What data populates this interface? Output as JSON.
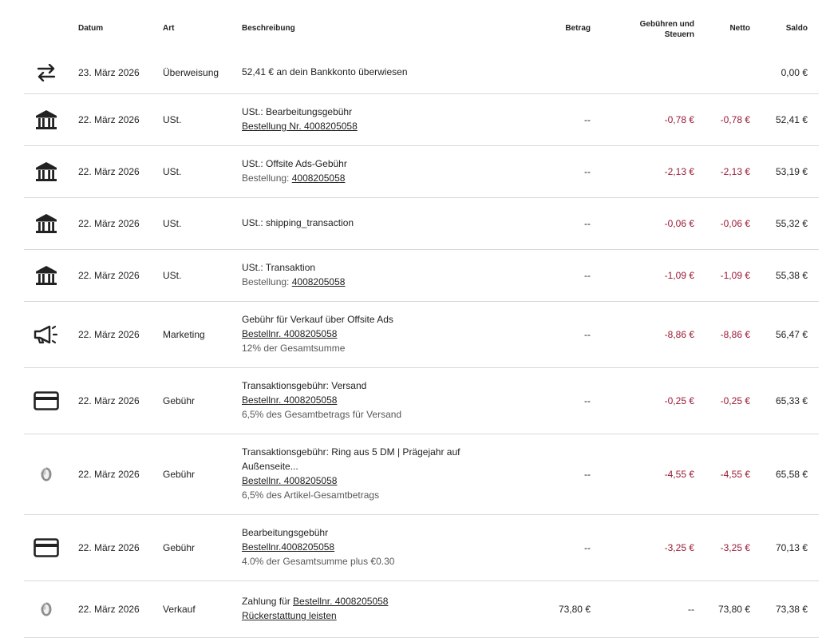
{
  "headers": {
    "datum": "Datum",
    "art": "Art",
    "beschreibung": "Beschreibung",
    "betrag": "Betrag",
    "gebuehren_l1": "Gebühren und",
    "gebuehren_l2": "Steuern",
    "netto": "Netto",
    "saldo": "Saldo"
  },
  "rows": [
    {
      "icon": "transfer-icon",
      "datum": "23. März 2026",
      "art": "Überweisung",
      "desc1": "52,41 € an dein Bankkonto überwiesen",
      "betrag": "",
      "gebuehren": "",
      "netto": "",
      "saldo": "0,00 €"
    },
    {
      "icon": "bank-icon",
      "datum": "22. März 2026",
      "art": "USt.",
      "desc1": "USt.: Bearbeitungsgebühr",
      "desc2_link": "Bestellung Nr. 4008205058",
      "betrag": "--",
      "gebuehren": "-0,78 €",
      "netto": "-0,78 €",
      "saldo": "52,41 €"
    },
    {
      "icon": "bank-icon",
      "datum": "22. März 2026",
      "art": "USt.",
      "desc1": "USt.: Offsite Ads-Gebühr",
      "desc2_prefix": "Bestellung: ",
      "desc2_link": "4008205058",
      "betrag": "--",
      "gebuehren": "-2,13 €",
      "netto": "-2,13 €",
      "saldo": "53,19 €"
    },
    {
      "icon": "bank-icon",
      "datum": "22. März 2026",
      "art": "USt.",
      "desc1": "USt.: shipping_transaction",
      "betrag": "--",
      "gebuehren": "-0,06 €",
      "netto": "-0,06 €",
      "saldo": "55,32 €"
    },
    {
      "icon": "bank-icon",
      "datum": "22. März 2026",
      "art": "USt.",
      "desc1": "USt.: Transaktion",
      "desc2_prefix": "Bestellung: ",
      "desc2_link": "4008205058",
      "betrag": "--",
      "gebuehren": "-1,09 €",
      "netto": "-1,09 €",
      "saldo": "55,38 €"
    },
    {
      "icon": "megaphone-icon",
      "datum": "22. März 2026",
      "art": "Marketing",
      "desc1": "Gebühr für Verkauf über Offsite Ads",
      "desc2_link": "Bestellnr. 4008205058",
      "desc3": "12% der Gesamtsumme",
      "betrag": "--",
      "gebuehren": "-8,86 €",
      "netto": "-8,86 €",
      "saldo": "56,47 €"
    },
    {
      "icon": "credit-card-icon",
      "datum": "22. März 2026",
      "art": "Gebühr",
      "desc1": "Transaktionsgebühr: Versand",
      "desc2_link": "Bestellnr. 4008205058",
      "desc3": "6,5% des Gesamtbetrags für Versand",
      "betrag": "--",
      "gebuehren": "-0,25 €",
      "netto": "-0,25 €",
      "saldo": "65,33 €"
    },
    {
      "icon": "ring-icon",
      "datum": "22. März 2026",
      "art": "Gebühr",
      "desc1": "Transaktionsgebühr: Ring aus 5 DM | Prägejahr auf",
      "desc1b": "Außenseite...",
      "desc2_link": "Bestellnr. 4008205058",
      "desc3": "6,5% des Artikel-Gesamtbetrags",
      "betrag": "--",
      "gebuehren": "-4,55 €",
      "netto": "-4,55 €",
      "saldo": "65,58 €"
    },
    {
      "icon": "credit-card-icon",
      "datum": "22. März 2026",
      "art": "Gebühr",
      "desc1": "Bearbeitungsgebühr",
      "desc2_link": "Bestellnr.4008205058",
      "desc3": "4.0% der Gesamtsumme plus €0.30",
      "betrag": "--",
      "gebuehren": "-3,25 €",
      "netto": "-3,25 €",
      "saldo": "70,13 €"
    },
    {
      "icon": "ring-icon",
      "datum": "22. März 2026",
      "art": "Verkauf",
      "desc1_prefix": "Zahlung für ",
      "desc1_link": "Bestellnr. 4008205058",
      "desc2_link": "Rückerstattung leisten",
      "betrag": "73,80 €",
      "gebuehren": "--",
      "netto": "73,80 €",
      "saldo": "73,38 €"
    }
  ],
  "colors": {
    "negative": "#9a1a36",
    "border": "#d9d9d9",
    "text": "#222222",
    "muted": "#595959"
  }
}
